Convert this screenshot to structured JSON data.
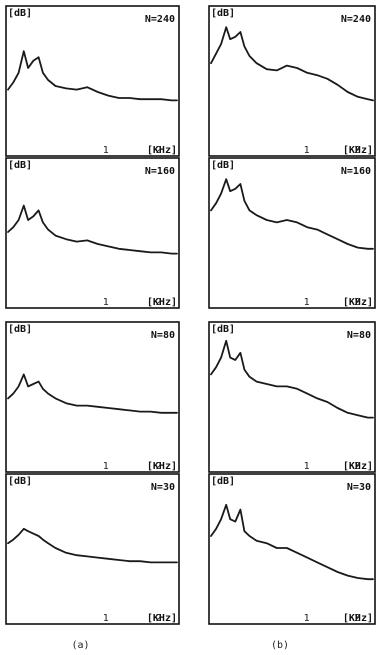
{
  "colors": {
    "frame": "#111111",
    "curve": "#1a1a1a",
    "background": "#ffffff"
  },
  "chart_data": [
    {
      "type": "line",
      "column": "a",
      "caption": "(a)",
      "ylabel": "[dB]",
      "xlabel": "[KHz]",
      "annotation": "N=240",
      "x_ticks": [
        "1",
        "2"
      ],
      "xlim": [
        0,
        3.2
      ],
      "ylim": [
        0,
        1
      ],
      "series": [
        {
          "x": [
            0,
            0.1,
            0.2,
            0.3,
            0.38,
            0.48,
            0.58,
            0.66,
            0.76,
            0.9,
            1.1,
            1.3,
            1.5,
            1.7,
            1.9,
            2.1,
            2.3,
            2.5,
            2.7,
            2.9,
            3.1,
            3.2
          ],
          "values": [
            0.42,
            0.48,
            0.56,
            0.74,
            0.6,
            0.66,
            0.69,
            0.56,
            0.5,
            0.45,
            0.43,
            0.42,
            0.44,
            0.4,
            0.37,
            0.35,
            0.35,
            0.34,
            0.34,
            0.34,
            0.33,
            0.33
          ]
        }
      ]
    },
    {
      "type": "line",
      "column": "b",
      "caption": "(b)",
      "ylabel": "[dB]",
      "xlabel": "[KHz]",
      "annotation": "N=240",
      "x_ticks": [
        "1",
        "2"
      ],
      "xlim": [
        0,
        3.2
      ],
      "ylim": [
        0,
        1
      ],
      "series": [
        {
          "x": [
            0,
            0.1,
            0.2,
            0.3,
            0.38,
            0.48,
            0.58,
            0.66,
            0.76,
            0.9,
            1.1,
            1.3,
            1.5,
            1.7,
            1.9,
            2.1,
            2.3,
            2.5,
            2.7,
            2.9,
            3.1,
            3.2
          ],
          "values": [
            0.64,
            0.72,
            0.8,
            0.94,
            0.84,
            0.86,
            0.9,
            0.78,
            0.7,
            0.64,
            0.59,
            0.58,
            0.62,
            0.6,
            0.56,
            0.54,
            0.51,
            0.46,
            0.4,
            0.36,
            0.34,
            0.33
          ]
        }
      ]
    },
    {
      "type": "line",
      "column": "a",
      "caption": "",
      "ylabel": "[dB]",
      "xlabel": "[KHz]",
      "annotation": "N=160",
      "x_ticks": [
        "1",
        "2"
      ],
      "xlim": [
        0,
        3.2
      ],
      "ylim": [
        0,
        1
      ],
      "series": [
        {
          "x": [
            0,
            0.1,
            0.2,
            0.3,
            0.38,
            0.48,
            0.58,
            0.66,
            0.76,
            0.9,
            1.1,
            1.3,
            1.5,
            1.7,
            1.9,
            2.1,
            2.3,
            2.5,
            2.7,
            2.9,
            3.1,
            3.2
          ],
          "values": [
            0.5,
            0.54,
            0.6,
            0.72,
            0.6,
            0.63,
            0.68,
            0.58,
            0.52,
            0.47,
            0.44,
            0.42,
            0.43,
            0.4,
            0.38,
            0.36,
            0.35,
            0.34,
            0.33,
            0.33,
            0.32,
            0.32
          ]
        }
      ]
    },
    {
      "type": "line",
      "column": "b",
      "caption": "",
      "ylabel": "[dB]",
      "xlabel": "[KHz]",
      "annotation": "N=160",
      "x_ticks": [
        "1",
        "2"
      ],
      "xlim": [
        0,
        3.2
      ],
      "ylim": [
        0,
        1
      ],
      "series": [
        {
          "x": [
            0,
            0.1,
            0.2,
            0.3,
            0.38,
            0.48,
            0.58,
            0.66,
            0.76,
            0.9,
            1.1,
            1.3,
            1.5,
            1.7,
            1.9,
            2.1,
            2.3,
            2.5,
            2.7,
            2.9,
            3.1,
            3.2
          ],
          "values": [
            0.68,
            0.74,
            0.82,
            0.94,
            0.84,
            0.86,
            0.9,
            0.76,
            0.68,
            0.64,
            0.6,
            0.58,
            0.6,
            0.58,
            0.54,
            0.52,
            0.48,
            0.44,
            0.4,
            0.37,
            0.36,
            0.36
          ]
        }
      ]
    },
    {
      "type": "line",
      "column": "a",
      "caption": "",
      "ylabel": "[dB]",
      "xlabel": "[KHz]",
      "annotation": "N=80",
      "x_ticks": [
        "1",
        "2"
      ],
      "xlim": [
        0,
        3.2
      ],
      "ylim": [
        0,
        1
      ],
      "series": [
        {
          "x": [
            0,
            0.1,
            0.2,
            0.3,
            0.38,
            0.48,
            0.58,
            0.66,
            0.76,
            0.9,
            1.1,
            1.3,
            1.5,
            1.7,
            1.9,
            2.1,
            2.3,
            2.5,
            2.7,
            2.9,
            3.1,
            3.2
          ],
          "values": [
            0.48,
            0.52,
            0.58,
            0.68,
            0.58,
            0.6,
            0.62,
            0.56,
            0.52,
            0.48,
            0.44,
            0.42,
            0.42,
            0.41,
            0.4,
            0.39,
            0.38,
            0.37,
            0.37,
            0.36,
            0.36,
            0.36
          ]
        }
      ]
    },
    {
      "type": "line",
      "column": "b",
      "caption": "",
      "ylabel": "[dB]",
      "xlabel": "[KHz]",
      "annotation": "N=80",
      "x_ticks": [
        "1",
        "2"
      ],
      "xlim": [
        0,
        3.2
      ],
      "ylim": [
        0,
        1
      ],
      "series": [
        {
          "x": [
            0,
            0.1,
            0.2,
            0.3,
            0.38,
            0.48,
            0.58,
            0.66,
            0.76,
            0.9,
            1.1,
            1.3,
            1.5,
            1.7,
            1.9,
            2.1,
            2.3,
            2.5,
            2.7,
            2.9,
            3.1,
            3.2
          ],
          "values": [
            0.68,
            0.74,
            0.82,
            0.96,
            0.82,
            0.8,
            0.86,
            0.72,
            0.66,
            0.62,
            0.6,
            0.58,
            0.58,
            0.56,
            0.52,
            0.48,
            0.45,
            0.4,
            0.36,
            0.34,
            0.32,
            0.32
          ]
        }
      ]
    },
    {
      "type": "line",
      "column": "a",
      "caption": "",
      "ylabel": "[dB]",
      "xlabel": "[KHz]",
      "annotation": "N=30",
      "x_ticks": [
        "1",
        "2"
      ],
      "xlim": [
        0,
        3.2
      ],
      "ylim": [
        0,
        1
      ],
      "series": [
        {
          "x": [
            0,
            0.1,
            0.2,
            0.3,
            0.38,
            0.48,
            0.58,
            0.66,
            0.76,
            0.9,
            1.1,
            1.3,
            1.5,
            1.7,
            1.9,
            2.1,
            2.3,
            2.5,
            2.7,
            2.9,
            3.1,
            3.2
          ],
          "values": [
            0.54,
            0.57,
            0.61,
            0.66,
            0.64,
            0.62,
            0.6,
            0.57,
            0.54,
            0.5,
            0.46,
            0.44,
            0.43,
            0.42,
            0.41,
            0.4,
            0.39,
            0.39,
            0.38,
            0.38,
            0.38,
            0.38
          ]
        }
      ]
    },
    {
      "type": "line",
      "column": "b",
      "caption": "",
      "ylabel": "[dB]",
      "xlabel": "[KHz]",
      "annotation": "N=30",
      "x_ticks": [
        "1",
        "2"
      ],
      "xlim": [
        0,
        3.2
      ],
      "ylim": [
        0,
        1
      ],
      "series": [
        {
          "x": [
            0,
            0.1,
            0.2,
            0.3,
            0.38,
            0.48,
            0.58,
            0.66,
            0.76,
            0.9,
            1.1,
            1.3,
            1.5,
            1.7,
            1.9,
            2.1,
            2.3,
            2.5,
            2.7,
            2.9,
            3.1,
            3.2
          ],
          "values": [
            0.6,
            0.66,
            0.74,
            0.86,
            0.74,
            0.72,
            0.82,
            0.64,
            0.6,
            0.56,
            0.54,
            0.5,
            0.5,
            0.46,
            0.42,
            0.38,
            0.34,
            0.3,
            0.27,
            0.25,
            0.24,
            0.24
          ]
        }
      ]
    }
  ]
}
